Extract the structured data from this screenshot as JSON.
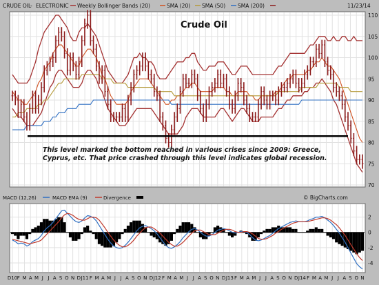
{
  "header": {
    "symbol": "CRUDE OIL",
    "exchange": "ELECTRONIC",
    "indicator_bollinger": "Weekly Bollinger Bands (20)",
    "indicator_sma20": "SMA (20)",
    "indicator_sma50": "SMA (50)",
    "indicator_sma200": "SMA (200)",
    "date": "11/23/14"
  },
  "colors": {
    "price_bar": "#8b1a1a",
    "bollinger": "#a33030",
    "sma20": "#d0501f",
    "sma50": "#b59a3a",
    "sma200": "#2f6fc2",
    "support_line": "#000000",
    "macd_line": "#2f6fc2",
    "macd_ema": "#c0392b",
    "divergence": "#000000",
    "panel_bg": "#ffffff",
    "frame_bg": "#bdbdbd"
  },
  "chart_data": [
    {
      "type": "line",
      "title": "Crude Oil",
      "ylim": [
        70,
        110
      ],
      "y_ticks": [
        70,
        75,
        80,
        85,
        90,
        95,
        100,
        105,
        110
      ],
      "x_tick_labels": [
        "D10",
        "F",
        "M",
        "A",
        "M",
        "J",
        "J",
        "A",
        "S",
        "O",
        "N",
        "D",
        "J11",
        "F",
        "M",
        "A",
        "M",
        "J",
        "J",
        "A",
        "S",
        "O",
        "N",
        "D",
        "J12",
        "F",
        "M",
        "A",
        "M",
        "J",
        "J",
        "A",
        "S",
        "O",
        "N",
        "D",
        "J13",
        "F",
        "M",
        "A",
        "M",
        "J",
        "J",
        "A",
        "S",
        "O",
        "N",
        "D",
        "J14",
        "F",
        "M",
        "A",
        "M",
        "J",
        "J",
        "A",
        "S",
        "O",
        "N"
      ],
      "series": [
        {
          "values": [
            91,
            90,
            87,
            89,
            86,
            84,
            88,
            91,
            88,
            90,
            93,
            97,
            98,
            99,
            100,
            104,
            106,
            105,
            101,
            97,
            100,
            98,
            96,
            99,
            104,
            108,
            110,
            104,
            102,
            98,
            95,
            97,
            92,
            89,
            86,
            86,
            86,
            86,
            88,
            86,
            90,
            93,
            96,
            97,
            98,
            100,
            98,
            96,
            95,
            92,
            91,
            86,
            84,
            81,
            80,
            83,
            86,
            88,
            92,
            95,
            94,
            94,
            96,
            95,
            91,
            88,
            86,
            89,
            92,
            93,
            94,
            96,
            94,
            95,
            92,
            89,
            88,
            91,
            94,
            93,
            90,
            88,
            86,
            86,
            86,
            89,
            92,
            90,
            89,
            91,
            91,
            90,
            92,
            93,
            93,
            94,
            95,
            96,
            94,
            93,
            94,
            96,
            97,
            99,
            99,
            102,
            101,
            103,
            99,
            97,
            96,
            93,
            92,
            91,
            89,
            86,
            84,
            81,
            78,
            76,
            76,
            75
          ]
        },
        {
          "values": [
            96,
            95,
            94,
            94,
            94,
            94,
            95,
            97,
            99,
            102,
            104,
            106,
            107,
            108,
            109,
            110,
            110,
            109,
            108,
            107,
            105,
            104,
            104,
            106,
            107,
            107,
            108,
            107,
            106,
            105,
            103,
            101,
            99,
            97,
            96,
            95,
            94,
            94,
            94,
            95,
            96,
            98,
            100,
            100,
            101,
            100,
            100,
            99,
            99,
            98,
            96,
            95,
            95,
            95,
            96,
            97,
            98,
            99,
            99,
            99,
            100,
            100,
            101,
            101,
            99,
            98,
            97,
            97,
            98,
            98,
            98,
            99,
            99,
            99,
            98,
            97,
            96,
            96,
            97,
            98,
            98,
            98,
            97,
            96,
            96,
            96,
            96,
            96,
            96,
            96,
            96,
            97,
            98,
            98,
            99,
            100,
            101,
            101,
            101,
            101,
            101,
            101,
            102,
            103,
            103,
            104,
            105,
            105,
            105,
            104,
            104,
            105,
            104,
            104,
            105,
            105,
            104,
            104,
            105,
            104,
            104,
            104
          ]
        },
        {
          "values": [
            88,
            87,
            86,
            86,
            85,
            84,
            84,
            84,
            85,
            86,
            87,
            89,
            91,
            93,
            94,
            96,
            97,
            97,
            96,
            95,
            94,
            93,
            93,
            93,
            94,
            96,
            97,
            97,
            96,
            95,
            93,
            92,
            90,
            88,
            87,
            86,
            85,
            84,
            84,
            84,
            85,
            86,
            87,
            88,
            88,
            88,
            88,
            88,
            88,
            87,
            86,
            85,
            84,
            83,
            82,
            82,
            82,
            82,
            83,
            84,
            86,
            87,
            88,
            88,
            88,
            87,
            86,
            86,
            86,
            86,
            86,
            87,
            88,
            88,
            87,
            86,
            85,
            86,
            87,
            88,
            88,
            87,
            86,
            85,
            85,
            85,
            86,
            86,
            86,
            86,
            86,
            87,
            88,
            88,
            89,
            90,
            90,
            91,
            91,
            91,
            91,
            92,
            92,
            93,
            93,
            94,
            94,
            95,
            94,
            93,
            92,
            90,
            89,
            87,
            85,
            83,
            81,
            79,
            77,
            75,
            74,
            73
          ]
        },
        {
          "values": [
            92,
            91,
            90,
            90,
            89,
            89,
            90,
            91,
            92,
            94,
            95,
            97,
            98,
            99,
            101,
            102,
            103,
            103,
            102,
            101,
            100,
            99,
            98,
            98,
            100,
            101,
            102,
            102,
            101,
            100,
            98,
            96,
            95,
            93,
            91,
            90,
            89,
            89,
            89,
            89,
            90,
            92,
            93,
            94,
            95,
            95,
            95,
            95,
            94,
            93,
            92,
            91,
            90,
            89,
            89,
            90,
            90,
            91,
            91,
            92,
            93,
            93,
            94,
            94,
            93,
            92,
            92,
            92,
            92,
            92,
            93,
            93,
            93,
            93,
            92,
            92,
            91,
            91,
            92,
            92,
            92,
            92,
            91,
            91,
            90,
            90,
            91,
            91,
            91,
            91,
            91,
            92,
            92,
            93,
            94,
            95,
            95,
            96,
            96,
            96,
            96,
            96,
            97,
            97,
            98,
            99,
            99,
            100,
            99,
            98,
            98,
            97,
            96,
            95,
            93,
            91,
            89,
            87,
            85,
            83,
            81,
            80
          ]
        },
        {
          "values": [
            86,
            86,
            87,
            87,
            87,
            88,
            88,
            88,
            88,
            89,
            89,
            90,
            90,
            91,
            92,
            93,
            94,
            94,
            95,
            95,
            95,
            95,
            95,
            95,
            96,
            96,
            96,
            96,
            96,
            96,
            96,
            95,
            95,
            95,
            95,
            94,
            94,
            94,
            94,
            94,
            93,
            93,
            93,
            93,
            93,
            93,
            93,
            93,
            93,
            93,
            92,
            92,
            92,
            92,
            92,
            92,
            91,
            91,
            91,
            91,
            91,
            91,
            91,
            91,
            91,
            91,
            91,
            91,
            91,
            91,
            91,
            91,
            91,
            91,
            91,
            91,
            91,
            91,
            91,
            91,
            91,
            91,
            91,
            91,
            91,
            91,
            91,
            91,
            91,
            91,
            91,
            91,
            92,
            92,
            92,
            92,
            92,
            92,
            92,
            92,
            93,
            93,
            93,
            93,
            93,
            93,
            94,
            94,
            94,
            94,
            94,
            94,
            94,
            93,
            93,
            93,
            93,
            92,
            92,
            92,
            92,
            92
          ]
        },
        {
          "values": [
            83,
            83,
            83,
            83,
            83,
            84,
            84,
            84,
            84,
            84,
            84,
            85,
            85,
            85,
            86,
            86,
            87,
            87,
            87,
            88,
            88,
            88,
            88,
            89,
            89,
            89,
            89,
            89,
            90,
            90,
            90,
            90,
            90,
            90,
            90,
            90,
            90,
            90,
            90,
            90,
            90,
            90,
            90,
            90,
            90,
            90,
            90,
            90,
            90,
            90,
            90,
            90,
            90,
            90,
            90,
            89,
            89,
            89,
            89,
            89,
            89,
            89,
            89,
            89,
            89,
            89,
            89,
            89,
            89,
            89,
            89,
            89,
            89,
            89,
            89,
            89,
            89,
            89,
            89,
            89,
            89,
            89,
            89,
            89,
            89,
            89,
            89,
            89,
            89,
            89,
            89,
            89,
            89,
            89,
            89,
            89,
            89,
            89,
            89,
            89,
            90,
            90,
            90,
            90,
            90,
            90,
            90,
            90,
            90,
            90,
            90,
            90,
            90,
            90,
            90,
            90,
            90,
            90,
            90,
            90,
            90,
            90
          ]
        }
      ],
      "annotations": [
        "This level marked the bottom reached in various crises since 2009: Greece,",
        "Cyprus, etc.  That price crashed through this level indicates global recession."
      ],
      "support_level": 81.5
    },
    {
      "type": "line",
      "legend": [
        "MACD (12,26)",
        "MACD EMA (9)",
        "Divergence"
      ],
      "ylim": [
        -5,
        3.5
      ],
      "y_ticks": [
        -4,
        -2,
        0,
        2
      ],
      "series": [
        {
          "values": [
            -1,
            -1.2,
            -1.5,
            -1.4,
            -1.5,
            -1.8,
            -1.6,
            -1.2,
            -1,
            -0.8,
            -0.4,
            0.2,
            0.6,
            0.9,
            1.3,
            1.8,
            2.3,
            2.8,
            2.9,
            2.5,
            2.1,
            1.7,
            1.4,
            1.3,
            1.5,
            1.9,
            2.2,
            2.1,
            1.9,
            1.5,
            0.9,
            0.3,
            -0.3,
            -0.9,
            -1.4,
            -1.8,
            -2,
            -2.1,
            -2,
            -1.7,
            -1.3,
            -0.8,
            -0.3,
            0.2,
            0.6,
            0.8,
            0.9,
            0.7,
            0.5,
            0.2,
            -0.2,
            -0.7,
            -1.2,
            -1.7,
            -2,
            -2.1,
            -1.9,
            -1.6,
            -1.2,
            -0.7,
            -0.3,
            0.1,
            0.4,
            0.5,
            0.3,
            0,
            -0.3,
            -0.5,
            -0.5,
            -0.3,
            0,
            0.3,
            0.4,
            0.5,
            0.4,
            0.2,
            0,
            -0.1,
            0,
            0.1,
            0.1,
            0,
            -0.3,
            -0.7,
            -1,
            -1.1,
            -1,
            -0.8,
            -0.6,
            -0.4,
            -0.1,
            0.2,
            0.5,
            0.7,
            0.9,
            1.1,
            1.3,
            1.4,
            1.5,
            1.4,
            1.4,
            1.4,
            1.5,
            1.7,
            1.8,
            2,
            2,
            2.1,
            1.9,
            1.6,
            1.3,
            0.9,
            0.4,
            -0.1,
            -0.7,
            -1.3,
            -2,
            -2.7,
            -3.4,
            -4.1,
            -4.5,
            -4.8
          ]
        },
        {
          "values": [
            -0.9,
            -1,
            -1.1,
            -1.2,
            -1.3,
            -1.4,
            -1.5,
            -1.4,
            -1.3,
            -1.2,
            -1,
            -0.6,
            -0.2,
            0.2,
            0.6,
            1,
            1.4,
            1.9,
            2.3,
            2.5,
            2.4,
            2.2,
            1.9,
            1.7,
            1.6,
            1.6,
            1.8,
            2,
            2,
            1.9,
            1.6,
            1.1,
            0.6,
            0,
            -0.5,
            -1,
            -1.4,
            -1.7,
            -1.9,
            -1.9,
            -1.7,
            -1.4,
            -1,
            -0.5,
            -0.1,
            0.3,
            0.6,
            0.7,
            0.7,
            0.5,
            0.2,
            -0.1,
            -0.5,
            -0.9,
            -1.3,
            -1.6,
            -1.8,
            -1.8,
            -1.6,
            -1.3,
            -0.9,
            -0.5,
            -0.1,
            0.2,
            0.3,
            0.3,
            0.1,
            -0.1,
            -0.3,
            -0.3,
            -0.3,
            -0.1,
            0.1,
            0.3,
            0.4,
            0.4,
            0.3,
            0.1,
            0,
            0,
            0.1,
            0.1,
            0,
            -0.2,
            -0.5,
            -0.8,
            -0.9,
            -0.9,
            -0.8,
            -0.6,
            -0.4,
            -0.1,
            0.1,
            0.4,
            0.6,
            0.8,
            1,
            1.2,
            1.3,
            1.4,
            1.4,
            1.4,
            1.4,
            1.5,
            1.6,
            1.7,
            1.8,
            1.9,
            1.9,
            1.8,
            1.6,
            1.3,
            1,
            0.6,
            0.1,
            -0.4,
            -1,
            -1.6,
            -2.2,
            -2.8,
            -3.3,
            -3.7
          ]
        }
      ]
    }
  ],
  "x_axis": {
    "labels": [
      "D10",
      "F",
      "M",
      "A",
      "M",
      "J",
      "J",
      "A",
      "S",
      "O",
      "N",
      "D",
      "J11",
      "F",
      "M",
      "A",
      "M",
      "J",
      "J",
      "A",
      "S",
      "O",
      "N",
      "D",
      "J12",
      "F",
      "M",
      "A",
      "M",
      "J",
      "J",
      "A",
      "S",
      "O",
      "N",
      "D",
      "J13",
      "F",
      "M",
      "A",
      "M",
      "J",
      "J",
      "A",
      "S",
      "O",
      "N",
      "D",
      "J14",
      "F",
      "M",
      "A",
      "M",
      "J",
      "J",
      "A",
      "S",
      "O",
      "N"
    ]
  },
  "watermark": "© BigCharts.com"
}
